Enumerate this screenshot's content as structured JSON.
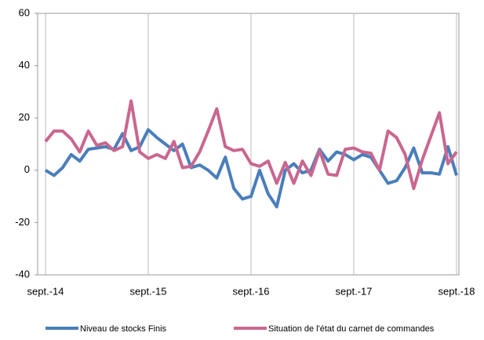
{
  "chart_data": {
    "type": "line",
    "categories": [
      "sept.-14",
      null,
      null,
      null,
      null,
      null,
      null,
      null,
      null,
      null,
      null,
      null,
      "sept.-15",
      null,
      null,
      null,
      null,
      null,
      null,
      null,
      null,
      null,
      null,
      null,
      "sept.-16",
      null,
      null,
      null,
      null,
      null,
      null,
      null,
      null,
      null,
      null,
      null,
      "sept.-17",
      null,
      null,
      null,
      null,
      null,
      null,
      null,
      null,
      null,
      null,
      null,
      "sept.-18"
    ],
    "series": [
      {
        "name": "Niveau de stocks Finis",
        "color": "#4a7ebb",
        "values": [
          0,
          -2,
          1,
          6,
          3.5,
          8,
          8.5,
          9,
          8,
          14,
          7.5,
          9,
          15.5,
          12.5,
          10,
          7.5,
          10,
          1,
          2,
          0,
          -3,
          5,
          -7,
          -11,
          -10,
          0,
          -9,
          -14,
          0,
          2.5,
          -1,
          0,
          8,
          3.5,
          7,
          6,
          4,
          6,
          5,
          0,
          -5,
          -4,
          1,
          8.5,
          -1,
          -1,
          -1.5,
          9,
          -2
        ]
      },
      {
        "name": "Situation de l'état du carnet de commandes",
        "color": "#c9678f",
        "values": [
          11,
          15,
          15,
          12,
          7,
          15,
          9.5,
          10.5,
          7.5,
          9,
          26.5,
          7,
          4.5,
          6,
          4.5,
          11,
          1,
          1.5,
          7,
          15,
          23.5,
          9,
          7.5,
          8,
          2.5,
          1.5,
          3.5,
          -5,
          3,
          -5,
          3.5,
          -2,
          7.5,
          -1.5,
          -2,
          8,
          8.5,
          7,
          6.5,
          0,
          15,
          12.5,
          6,
          -7,
          4,
          13,
          22,
          2.5,
          7
        ]
      }
    ],
    "ylim": [
      -40,
      60
    ],
    "yticks": [
      -40,
      -20,
      0,
      20,
      40,
      60
    ],
    "grid": true
  }
}
